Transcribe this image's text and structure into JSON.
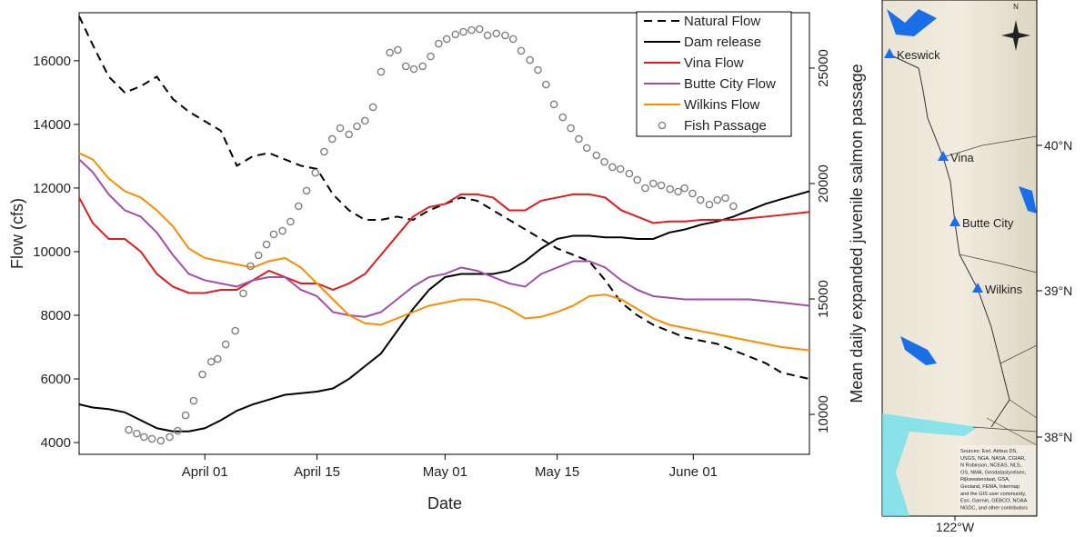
{
  "chart_data": {
    "type": "line",
    "xlabel": "Date",
    "ylabel": "Flow (cfs)",
    "y2label": "Mean daily expanded juvenile salmon passage",
    "xlim": [
      -15.7,
      75.5
    ],
    "xticks": [
      {
        "value": 0,
        "label": "April 01"
      },
      {
        "value": 14,
        "label": "April 15"
      },
      {
        "value": 30,
        "label": "May 01"
      },
      {
        "value": 44,
        "label": "May 15"
      },
      {
        "value": 61,
        "label": "June 01"
      }
    ],
    "ylim": [
      3630,
      17510
    ],
    "yticks": [
      4000,
      6000,
      8000,
      10000,
      12000,
      14000,
      16000
    ],
    "y2lim": [
      8270,
      27400
    ],
    "y2ticks": [
      10000,
      15000,
      20000,
      25000
    ],
    "legend": "upper right",
    "x": [
      -15.7,
      -14,
      -12,
      -10,
      -8,
      -6,
      -4,
      -2,
      0,
      2,
      4,
      6,
      8,
      10,
      12,
      14,
      16,
      18,
      20,
      22,
      24,
      26,
      28,
      30,
      32,
      34,
      36,
      38,
      40,
      42,
      44,
      46,
      48,
      50,
      52,
      54,
      56,
      58,
      60,
      62,
      64,
      66,
      68,
      70,
      72,
      75.5
    ],
    "series": [
      {
        "name": "Natural Flow",
        "color": "#000000",
        "style": "dashed",
        "values": [
          17400,
          16500,
          15500,
          15000,
          15200,
          15500,
          14800,
          14400,
          14100,
          13800,
          12700,
          13000,
          13100,
          12900,
          12700,
          12600,
          11800,
          11300,
          11000,
          11000,
          11100,
          11000,
          11300,
          11500,
          11700,
          11600,
          11300,
          11000,
          10700,
          10400,
          10100,
          9900,
          9700,
          9100,
          8400,
          8000,
          7700,
          7500,
          7300,
          7200,
          7100,
          6900,
          6700,
          6500,
          6200,
          6000
        ]
      },
      {
        "name": "Dam release",
        "color": "#000000",
        "style": "solid",
        "values": [
          5200,
          5100,
          5050,
          4950,
          4700,
          4450,
          4350,
          4350,
          4450,
          4700,
          5000,
          5200,
          5350,
          5500,
          5550,
          5600,
          5700,
          6000,
          6400,
          6800,
          7500,
          8200,
          8800,
          9200,
          9300,
          9300,
          9300,
          9400,
          9700,
          10100,
          10400,
          10500,
          10500,
          10450,
          10450,
          10400,
          10400,
          10600,
          10700,
          10850,
          10950,
          11100,
          11300,
          11500,
          11650,
          11900
        ]
      },
      {
        "name": "Vina Flow",
        "color": "#e41a1c",
        "style": "solid",
        "values": [
          11700,
          10900,
          10400,
          10400,
          10000,
          9300,
          8900,
          8700,
          8700,
          8800,
          8800,
          9100,
          9400,
          9200,
          9000,
          9000,
          8800,
          9000,
          9300,
          9900,
          10500,
          11100,
          11400,
          11500,
          11800,
          11800,
          11700,
          11300,
          11300,
          11600,
          11700,
          11800,
          11800,
          11700,
          11300,
          11100,
          10900,
          10950,
          10950,
          11000,
          11000,
          11000,
          11050,
          11100,
          11150,
          11250
        ]
      },
      {
        "name": "Butte City Flow",
        "color": "#a24ea6",
        "style": "solid",
        "values": [
          12900,
          12500,
          11800,
          11300,
          11100,
          10600,
          9900,
          9300,
          9100,
          9000,
          8900,
          9100,
          9200,
          9200,
          8800,
          8600,
          8100,
          8000,
          7950,
          8100,
          8500,
          8900,
          9200,
          9300,
          9500,
          9400,
          9200,
          9000,
          8900,
          9300,
          9500,
          9700,
          9700,
          9500,
          9100,
          8800,
          8600,
          8550,
          8500,
          8500,
          8500,
          8500,
          8500,
          8450,
          8400,
          8300
        ]
      },
      {
        "name": "Wilkins Flow",
        "color": "#ff8c00",
        "style": "solid",
        "values": [
          13100,
          12900,
          12300,
          11900,
          11700,
          11300,
          10800,
          10100,
          9800,
          9700,
          9600,
          9500,
          9700,
          9800,
          9500,
          9000,
          8500,
          8000,
          7750,
          7700,
          7900,
          8100,
          8300,
          8400,
          8500,
          8500,
          8400,
          8200,
          7900,
          7950,
          8100,
          8300,
          8600,
          8650,
          8500,
          8200,
          7900,
          7700,
          7600,
          7500,
          7400,
          7300,
          7200,
          7100,
          7000,
          6900
        ]
      },
      {
        "name": "Fish Passage",
        "color": "#808080",
        "type": "scatter",
        "axis": "y2",
        "x": [
          -9.5,
          -8.5,
          -7.6,
          -6.6,
          -5.5,
          -4.4,
          -3.4,
          -2.4,
          -1.4,
          -0.3,
          0.8,
          1.6,
          2.6,
          3.8,
          4.8,
          5.7,
          6.7,
          7.7,
          8.6,
          9.7,
          10.7,
          11.7,
          12.7,
          13.8,
          14.9,
          15.9,
          16.9,
          18.0,
          19.0,
          20.0,
          21.0,
          22.0,
          23.1,
          24.1,
          25.1,
          26.1,
          27.2,
          28.2,
          29.2,
          30.2,
          31.3,
          32.3,
          33.3,
          34.3,
          35.3,
          36.4,
          37.5,
          38.5,
          39.5,
          40.6,
          41.6,
          42.6,
          43.6,
          44.7,
          45.7,
          46.7,
          47.7,
          48.9,
          49.9,
          50.9,
          51.9,
          53.0,
          54.0,
          55.0,
          56.0,
          57.0,
          58.1,
          59.1,
          59.9,
          60.9,
          61.9,
          63.0,
          64.0,
          65.0,
          66.0
        ],
        "values": [
          9330,
          9170,
          9020,
          8940,
          8860,
          9020,
          9290,
          9960,
          10590,
          11730,
          12280,
          12400,
          13030,
          13620,
          15240,
          16420,
          16890,
          17360,
          17800,
          17950,
          18350,
          19020,
          19690,
          20470,
          21380,
          21930,
          22400,
          22130,
          22480,
          22720,
          23310,
          24840,
          25670,
          25790,
          25080,
          24960,
          25080,
          25510,
          26060,
          26260,
          26460,
          26570,
          26650,
          26690,
          26420,
          26500,
          26420,
          26260,
          25750,
          25350,
          24920,
          24290,
          23430,
          22870,
          22400,
          21930,
          21540,
          21220,
          20940,
          20710,
          20630,
          20430,
          20160,
          19800,
          20000,
          19920,
          19760,
          19650,
          19800,
          19570,
          19290,
          19090,
          19290,
          19370,
          19020
        ]
      }
    ]
  },
  "map": {
    "sites": [
      "Keswick",
      "Vina",
      "Butte City",
      "Wilkins"
    ],
    "latitudes": [
      "40°N",
      "39°N",
      "38°N"
    ],
    "longitude": "122°W",
    "compass": "N",
    "source": [
      "Sources: Esri, Airbus DS,",
      "USGS, NGA, NASA, CGIAR,",
      "N Robinson, NCEAS, NLS,",
      "OS, NMA, Geodatastyrelsen,",
      "Rijkswaterstaat, GSA,",
      "Geoland, FEMA, Intermap",
      "and the GIS user community,",
      "Esri, Garmin, GEBCO, NOAA",
      "NGDC, and other contributors"
    ]
  }
}
